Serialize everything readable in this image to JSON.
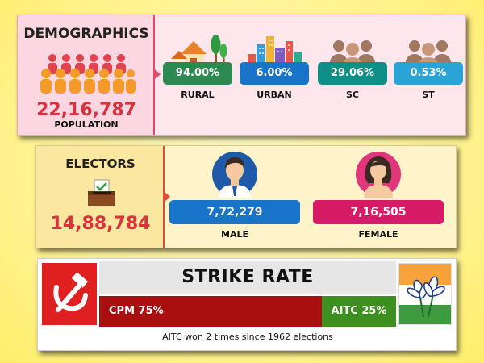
{
  "demographics": {
    "title": "DEMOGRAPHICS",
    "population_value": "22,16,787",
    "population_label": "POPULATION",
    "stats": [
      {
        "value": "94.00%",
        "label": "RURAL",
        "color": "#2c8a50",
        "icon": "rural-houses-icon"
      },
      {
        "value": "6.00%",
        "label": "URBAN",
        "color": "#1874c9",
        "icon": "city-skyline-icon"
      },
      {
        "value": "29.06%",
        "label": "SC",
        "color": "#0e8f88",
        "icon": "people-group-icon"
      },
      {
        "value": "0.53%",
        "label": "ST",
        "color": "#2aa3d6",
        "icon": "people-group-icon"
      }
    ]
  },
  "electors": {
    "title": "ELECTORS",
    "total_value": "14,88,784",
    "male": {
      "value": "7,72,279",
      "label": "MALE",
      "color": "#1874c9"
    },
    "female": {
      "value": "7,16,505",
      "label": "FEMALE",
      "color": "#d61a66"
    }
  },
  "strike_rate": {
    "title": "STRIKE RATE",
    "cpm": {
      "label": "CPM 75%",
      "percent": 75,
      "color": "#a90f0f"
    },
    "aitc": {
      "label": "AITC 25%",
      "percent": 25,
      "color": "#3d8f1f"
    },
    "note": "AITC won 2 times since 1962 elections"
  }
}
